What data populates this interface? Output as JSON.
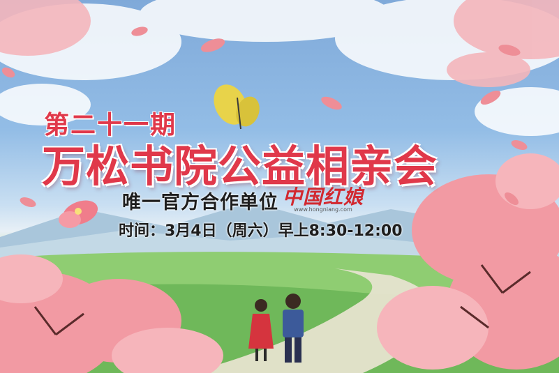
{
  "poster": {
    "issue": "第二十一期",
    "title": "万松书院公益相亲会",
    "partner_label": "唯一官方合作单位",
    "partner_logo_name": "中国红娘",
    "partner_logo_url": "www.hongniang.com",
    "time": "时间：3月4日（周六）早上8:30-12:00"
  },
  "colors": {
    "title_red": "#e0384a",
    "sky_blue": "#93bde6",
    "blossom_pink": "#f2a0a6",
    "grass_green": "#7ec26a"
  }
}
